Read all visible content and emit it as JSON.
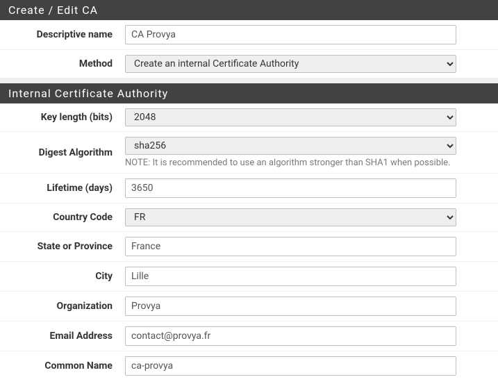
{
  "sections": {
    "create_edit_ca": {
      "title": "Create / Edit CA",
      "fields": {
        "descriptive_name": {
          "label": "Descriptive name",
          "value": "CA Provya"
        },
        "method": {
          "label": "Method",
          "value": "Create an internal Certificate Authority"
        }
      }
    },
    "internal_ca": {
      "title": "Internal Certificate Authority",
      "fields": {
        "key_length": {
          "label": "Key length (bits)",
          "value": "2048"
        },
        "digest_algorithm": {
          "label": "Digest Algorithm",
          "value": "sha256",
          "note": "NOTE: It is recommended to use an algorithm stronger than SHA1 when possible."
        },
        "lifetime": {
          "label": "Lifetime (days)",
          "value": "3650"
        },
        "country_code": {
          "label": "Country Code",
          "value": "FR"
        },
        "state_province": {
          "label": "State or Province",
          "value": "France"
        },
        "city": {
          "label": "City",
          "value": "Lille"
        },
        "organization": {
          "label": "Organization",
          "value": "Provya"
        },
        "email_address": {
          "label": "Email Address",
          "value": "contact@provya.fr"
        },
        "common_name": {
          "label": "Common Name",
          "value": "ca-provya"
        }
      }
    }
  },
  "colors": {
    "header_bg": "#424242",
    "header_text": "#ffffff",
    "body_bg": "#ffffff",
    "border": "#bfbfbf",
    "row_divider": "#f0f0f0",
    "help_text": "#7a7a7a",
    "gap_bg": "#eeeeee"
  }
}
